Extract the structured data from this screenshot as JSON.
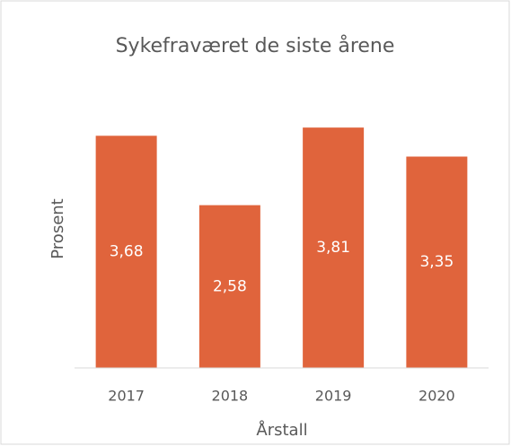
{
  "chart_data": {
    "type": "bar",
    "title": "Sykefraværet de siste årene",
    "x_label": "Årstall",
    "y_label": "Prosent",
    "categories": [
      "2017",
      "2018",
      "2019",
      "2020"
    ],
    "values": [
      3.68,
      2.58,
      3.81,
      3.35
    ],
    "value_labels": [
      "3,68",
      "2,58",
      "3,81",
      "3,35"
    ],
    "color": "#e0643c",
    "ylim": [
      0,
      4.5
    ]
  }
}
